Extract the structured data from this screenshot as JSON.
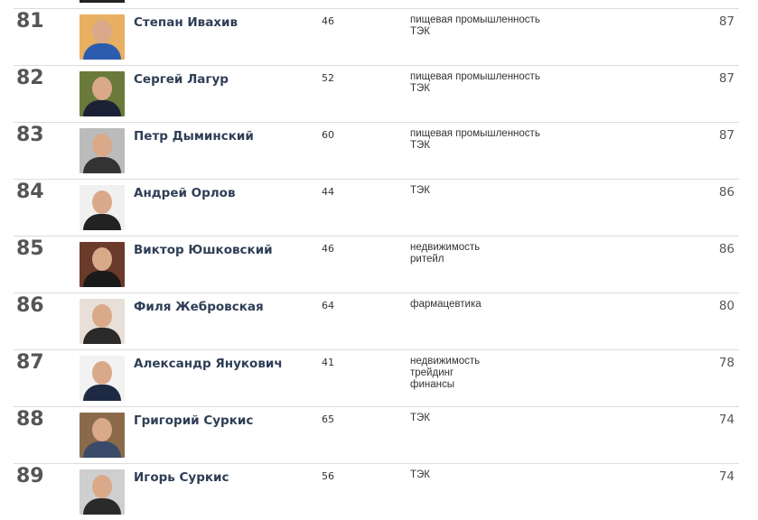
{
  "rows": [
    {
      "rank": "81",
      "name": "Степан Ивахив",
      "age": "46",
      "industries": [
        "пищевая промышленность",
        "ТЭК"
      ],
      "score": "87",
      "photo_bg": "#e8b060",
      "suit": "#2c5cae"
    },
    {
      "rank": "82",
      "name": "Сергей Лагур",
      "age": "52",
      "industries": [
        "пищевая промышленность",
        "ТЭК"
      ],
      "score": "87",
      "photo_bg": "#6a7a3a",
      "suit": "#1c2236"
    },
    {
      "rank": "83",
      "name": "Петр Дыминский",
      "age": "60",
      "industries": [
        "пищевая промышленность",
        "ТЭК"
      ],
      "score": "87",
      "photo_bg": "#bbbbbb",
      "suit": "#333333"
    },
    {
      "rank": "84",
      "name": "Андрей Орлов",
      "age": "44",
      "industries": [
        "ТЭК"
      ],
      "score": "86",
      "photo_bg": "#f0f0f0",
      "suit": "#222222"
    },
    {
      "rank": "85",
      "name": "Виктор Юшковский",
      "age": "46",
      "industries": [
        "недвижимость",
        "ритейл"
      ],
      "score": "86",
      "photo_bg": "#6a3a2a",
      "suit": "#1a1a1a"
    },
    {
      "rank": "86",
      "name": "Филя Жебровская",
      "age": "64",
      "industries": [
        "фармацевтика"
      ],
      "score": "80",
      "photo_bg": "#e8e0d8",
      "suit": "#2a2a2a"
    },
    {
      "rank": "87",
      "name": "Александр Янукович",
      "age": "41",
      "industries": [
        "недвижимость",
        "трейдинг",
        "финансы"
      ],
      "score": "78",
      "photo_bg": "#f2f2f2",
      "suit": "#1e2a44"
    },
    {
      "rank": "88",
      "name": "Григорий Суркис",
      "age": "65",
      "industries": [
        "ТЭК"
      ],
      "score": "74",
      "photo_bg": "#8a6a4a",
      "suit": "#3a4a6a"
    },
    {
      "rank": "89",
      "name": "Игорь Суркис",
      "age": "56",
      "industries": [
        "ТЭК"
      ],
      "score": "74",
      "photo_bg": "#cfcfcf",
      "suit": "#2a2a2a"
    }
  ]
}
